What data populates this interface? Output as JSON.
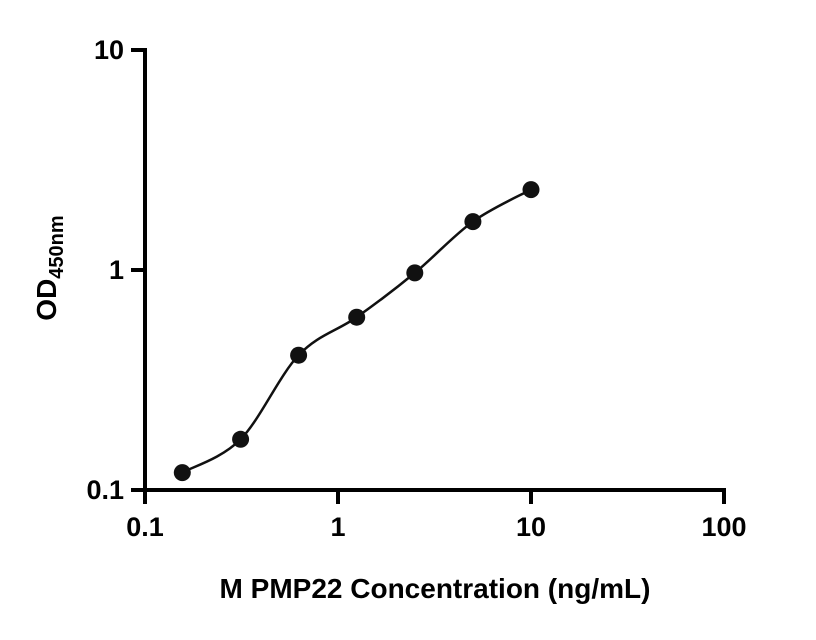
{
  "chart_data": {
    "type": "scatter",
    "title": "",
    "xlabel": "M PMP22 Concentration (ng/mL)",
    "ylabel": "OD",
    "ylabel_sub": "450nm",
    "x_scale": "log",
    "y_scale": "log",
    "xlim": [
      0.1,
      100
    ],
    "ylim": [
      0.1,
      10
    ],
    "x": [
      0.156,
      0.313,
      0.625,
      1.25,
      2.5,
      5,
      10
    ],
    "y": [
      0.12,
      0.17,
      0.41,
      0.61,
      0.97,
      1.66,
      2.32
    ],
    "x_ticks": [
      0.1,
      1,
      10,
      100
    ],
    "y_ticks": [
      0.1,
      1,
      10
    ],
    "x_tick_labels": [
      "0.1",
      "1",
      "10",
      "100"
    ],
    "y_tick_labels": [
      "0.1",
      "1",
      "10"
    ],
    "grid": false,
    "legend": "none",
    "marker_color": "#111111",
    "line_color": "#111111",
    "axis_color": "#000000"
  }
}
